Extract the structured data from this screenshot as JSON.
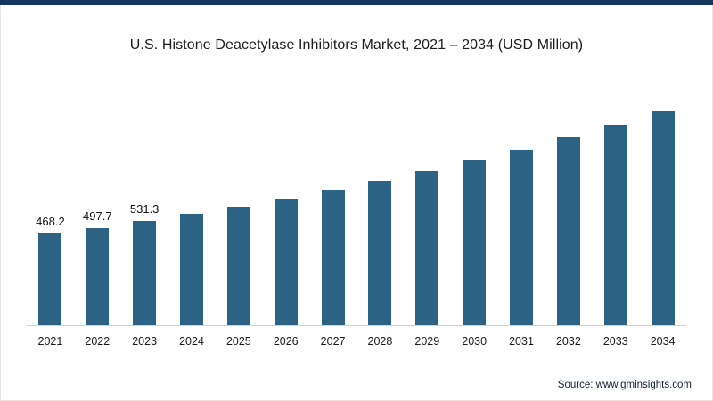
{
  "page": {
    "top_strip_color": "#14355e",
    "background_color": "#ffffff"
  },
  "chart_data": {
    "type": "bar",
    "title": "U.S. Histone Deacetylase Inhibitors Market, 2021 – 2034 (USD Million)",
    "categories": [
      "2021",
      "2022",
      "2023",
      "2024",
      "2025",
      "2026",
      "2027",
      "2028",
      "2029",
      "2030",
      "2031",
      "2032",
      "2033",
      "2034"
    ],
    "values": [
      468.2,
      497.7,
      531.3,
      567,
      605,
      646,
      690,
      737,
      787,
      840,
      897,
      958,
      1023,
      1093
    ],
    "shown_labels": [
      "468.2",
      "497.7",
      "531.3",
      "",
      "",
      "",
      "",
      "",
      "",
      "",
      "",
      "",
      "",
      ""
    ],
    "bar_color": "#2c6284",
    "xlabel": "",
    "ylabel": "",
    "ylim": [
      0,
      1250
    ],
    "grid": false,
    "legend": false,
    "axis_line_color": "#d2d2d2"
  },
  "footer": {
    "source_text": "Source: www.gminsights.com"
  }
}
